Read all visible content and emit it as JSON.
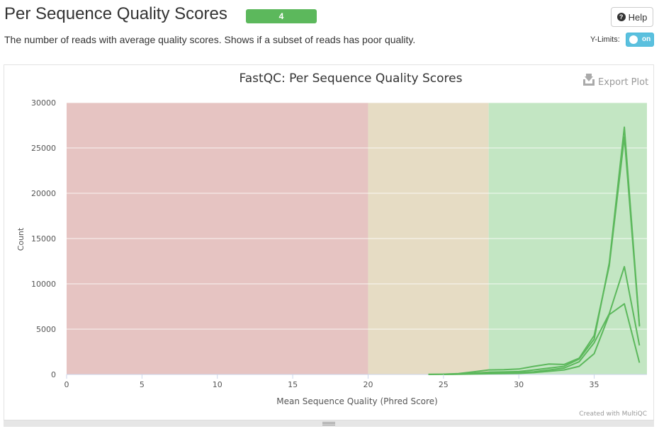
{
  "header": {
    "title": "Per Sequence Quality Scores",
    "badge_count": "4",
    "description": "The number of reads with average quality scores. Shows if a subset of reads has poor quality.",
    "help_label": "Help",
    "ylimits_label": "Y-Limits:",
    "toggle_label": "on"
  },
  "chart_data": {
    "type": "line",
    "title": "FastQC: Per Sequence Quality Scores",
    "xlabel": "Mean Sequence Quality (Phred Score)",
    "ylabel": "Count",
    "xlim": [
      0,
      38.5
    ],
    "ylim": [
      0,
      30000
    ],
    "x_ticks": [
      0,
      5,
      10,
      15,
      20,
      25,
      30,
      35
    ],
    "y_ticks": [
      0,
      5000,
      10000,
      15000,
      20000,
      25000,
      30000
    ],
    "grid": true,
    "bands": [
      {
        "from": 0,
        "to": 20,
        "color": "#e6c4c2"
      },
      {
        "from": 20,
        "to": 28,
        "color": "#e6dcc4"
      },
      {
        "from": 28,
        "to": 38.5,
        "color": "#c3e6c3"
      }
    ],
    "series_color": "#5cb85c",
    "series": [
      {
        "x": [
          24,
          25,
          26,
          27,
          28,
          29,
          30,
          31,
          32,
          33,
          34,
          35,
          36,
          37,
          38
        ],
        "values": [
          5,
          20,
          60,
          150,
          250,
          280,
          320,
          500,
          700,
          900,
          1700,
          3900,
          12300,
          27300,
          5400
        ]
      },
      {
        "x": [
          24,
          25,
          26,
          27,
          28,
          29,
          30,
          31,
          32,
          33,
          34,
          35,
          36,
          37,
          38
        ],
        "values": [
          5,
          30,
          100,
          300,
          500,
          520,
          600,
          900,
          1150,
          1100,
          1800,
          4300,
          12000,
          26200,
          5300
        ]
      },
      {
        "x": [
          25,
          26,
          27,
          28,
          29,
          30,
          31,
          32,
          33,
          34,
          35,
          36,
          37,
          38
        ],
        "values": [
          10,
          40,
          100,
          150,
          180,
          200,
          300,
          500,
          700,
          1400,
          3500,
          6700,
          11900,
          3200
        ]
      },
      {
        "x": [
          25,
          26,
          27,
          28,
          29,
          30,
          31,
          32,
          33,
          34,
          35,
          36,
          37,
          38
        ],
        "values": [
          5,
          20,
          50,
          80,
          100,
          120,
          200,
          350,
          500,
          900,
          2300,
          6600,
          7800,
          1300
        ]
      }
    ],
    "export_label": "Export Plot",
    "credit": "Created with MultiQC"
  }
}
